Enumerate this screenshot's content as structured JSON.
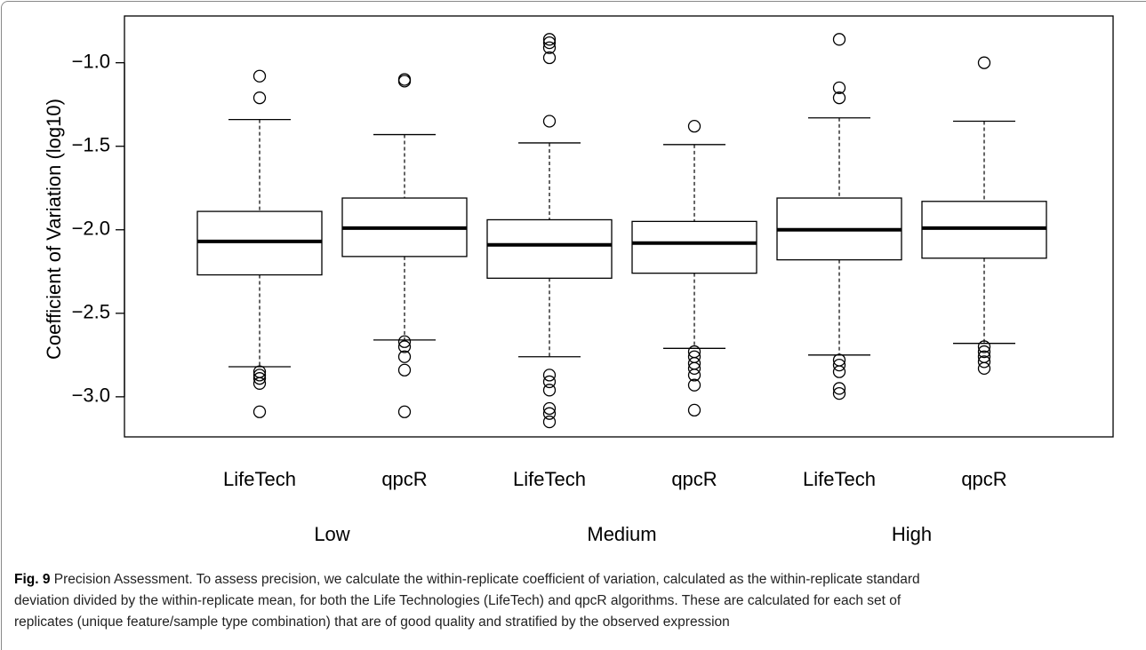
{
  "chart_data": {
    "type": "box",
    "y_label": "Coefficient of Variation (log10)",
    "categories": [
      "LifeTech",
      "qpcR",
      "LifeTech",
      "qpcR",
      "LifeTech",
      "qpcR"
    ],
    "groups": [
      "Low",
      "Medium",
      "High"
    ],
    "ylim": [
      -3.24,
      -0.72
    ],
    "yticks": [
      {
        "value": -1.0,
        "label": "−1.0"
      },
      {
        "value": -1.5,
        "label": "−1.5"
      },
      {
        "value": -2.0,
        "label": "−2.0"
      },
      {
        "value": -2.5,
        "label": "−2.5"
      },
      {
        "value": -3.0,
        "label": "−3.0"
      }
    ],
    "color": "#000000",
    "boxes": [
      {
        "whisker_low": -2.82,
        "q1": -2.27,
        "median": -2.07,
        "q3": -1.89,
        "whisker_high": -1.34,
        "outliers": [
          -1.08,
          -1.21,
          -2.85,
          -2.87,
          -2.89,
          -2.92,
          -3.09
        ]
      },
      {
        "whisker_low": -2.66,
        "q1": -2.16,
        "median": -1.99,
        "q3": -1.81,
        "whisker_high": -1.43,
        "outliers": [
          -1.1,
          -1.11,
          -2.67,
          -2.7,
          -2.76,
          -2.84,
          -3.09
        ]
      },
      {
        "whisker_low": -2.76,
        "q1": -2.29,
        "median": -2.09,
        "q3": -1.94,
        "whisker_high": -1.48,
        "outliers": [
          -0.86,
          -0.88,
          -0.91,
          -0.97,
          -1.35,
          -2.87,
          -2.91,
          -2.96,
          -3.07,
          -3.1,
          -3.15
        ]
      },
      {
        "whisker_low": -2.71,
        "q1": -2.26,
        "median": -2.08,
        "q3": -1.95,
        "whisker_high": -1.49,
        "outliers": [
          -1.38,
          -2.73,
          -2.76,
          -2.8,
          -2.83,
          -2.87,
          -2.93,
          -3.08
        ]
      },
      {
        "whisker_low": -2.75,
        "q1": -2.18,
        "median": -2.0,
        "q3": -1.81,
        "whisker_high": -1.33,
        "outliers": [
          -0.86,
          -1.15,
          -1.21,
          -2.78,
          -2.81,
          -2.85,
          -2.95,
          -2.98
        ]
      },
      {
        "whisker_low": -2.68,
        "q1": -2.17,
        "median": -1.99,
        "q3": -1.83,
        "whisker_high": -1.35,
        "outliers": [
          -1.0,
          -2.7,
          -2.73,
          -2.76,
          -2.79,
          -2.83
        ]
      }
    ]
  },
  "caption": {
    "label": "Fig. 9",
    "lines": [
      "Precision Assessment. To assess precision, we calculate the within-replicate coefficient of variation, calculated as the within-replicate standard",
      "deviation divided by the within-replicate mean, for both the Life Technologies (LifeTech) and qpcR algorithms. These are calculated for each set of",
      "replicates (unique feature/sample type combination) that are of good quality and stratified by the observed expression"
    ]
  }
}
